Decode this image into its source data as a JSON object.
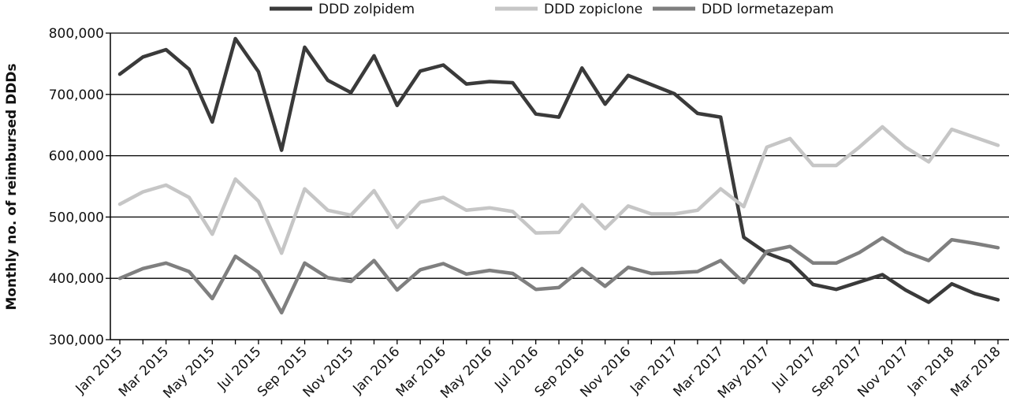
{
  "chart_data": {
    "type": "line",
    "title": "",
    "xlabel": "",
    "ylabel": "Monthly no. of reimbursed DDDs",
    "ylim": [
      300000,
      800000
    ],
    "yticks": [
      300000,
      400000,
      500000,
      600000,
      700000,
      800000
    ],
    "ytick_labels": [
      "300,000",
      "400,000",
      "500,000",
      "600,000",
      "700,000",
      "800,000"
    ],
    "grid": "horizontal",
    "legend_position": "top",
    "x": [
      "Jan 2015",
      "Feb 2015",
      "Mar 2015",
      "Apr 2015",
      "May 2015",
      "Jun 2015",
      "Jul 2015",
      "Aug 2015",
      "Sep 2015",
      "Oct 2015",
      "Nov 2015",
      "Dec 2015",
      "Jan 2016",
      "Feb 2016",
      "Mar 2016",
      "Apr 2016",
      "May 2016",
      "Jun 2016",
      "Jul 2016",
      "Aug 2016",
      "Sep 2016",
      "Oct 2016",
      "Nov 2016",
      "Dec 2016",
      "Jan 2017",
      "Feb 2017",
      "Mar 2017",
      "Apr 2017",
      "May 2017",
      "Jun 2017",
      "Jul 2017",
      "Aug 2017",
      "Sep 2017",
      "Oct 2017",
      "Nov 2017",
      "Dec 2017",
      "Jan 2018",
      "Feb 2018",
      "Mar 2018"
    ],
    "xtick_labels": [
      "Jan 2015",
      "Mar 2015",
      "May 2015",
      "Jul 2015",
      "Sep 2015",
      "Nov 2015",
      "Jan 2016",
      "Mar 2016",
      "May 2016",
      "Jul 2016",
      "Sep 2016",
      "Nov 2016",
      "Jan 2017",
      "Mar 2017",
      "May 2017",
      "Jul 2017",
      "Sep 2017",
      "Nov 2017",
      "Jan 2018",
      "Mar 2018"
    ],
    "series": [
      {
        "name": "DDD zolpidem",
        "color": "#3a3a3a",
        "values": [
          733000,
          761000,
          773000,
          741000,
          655000,
          791000,
          737000,
          609000,
          777000,
          723000,
          703000,
          763000,
          682000,
          738000,
          748000,
          717000,
          721000,
          719000,
          668000,
          663000,
          743000,
          684000,
          731000,
          716000,
          701000,
          669000,
          663000,
          467000,
          441000,
          427000,
          390000,
          382000,
          394000,
          406000,
          381000,
          361000,
          391000,
          375000,
          365000
        ]
      },
      {
        "name": "DDD zopiclone",
        "color": "#c6c6c6",
        "values": [
          521000,
          541000,
          552000,
          532000,
          472000,
          562000,
          526000,
          441000,
          546000,
          511000,
          503000,
          543000,
          483000,
          524000,
          532000,
          511000,
          515000,
          509000,
          474000,
          475000,
          520000,
          481000,
          518000,
          505000,
          505000,
          511000,
          546000,
          517000,
          614000,
          628000,
          584000,
          584000,
          614000,
          647000,
          614000,
          590000,
          643000,
          630000,
          617000
        ]
      },
      {
        "name": "DDD lormetazepam",
        "color": "#7f7f7f",
        "values": [
          400000,
          416000,
          425000,
          411000,
          367000,
          436000,
          410000,
          344000,
          425000,
          401000,
          395000,
          429000,
          381000,
          414000,
          424000,
          407000,
          413000,
          408000,
          382000,
          385000,
          416000,
          387000,
          418000,
          408000,
          409000,
          411000,
          429000,
          393000,
          444000,
          452000,
          425000,
          425000,
          442000,
          466000,
          443000,
          429000,
          463000,
          457000,
          450000
        ]
      }
    ]
  }
}
